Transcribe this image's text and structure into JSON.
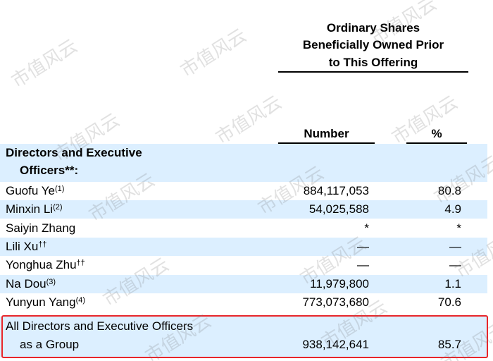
{
  "watermark": "市值风云",
  "header": {
    "title_lines": [
      "Ordinary Shares",
      "Beneficially Owned Prior",
      "to This Offering"
    ],
    "number_label": "Number",
    "percent_label": "%"
  },
  "section": {
    "lines": [
      "Directors and Executive",
      "Officers**:"
    ]
  },
  "people": [
    {
      "name": "Guofu Ye",
      "note": "(1)",
      "number": "884,117,053",
      "percent": "80.8"
    },
    {
      "name": "Minxin Li",
      "note": "(2)",
      "number": "54,025,588",
      "percent": "4.9"
    },
    {
      "name": "Saiyin Zhang",
      "number": "*",
      "percent": "*"
    },
    {
      "name": "Lili Xu",
      "note": "††",
      "number": "—",
      "percent": "—"
    },
    {
      "name": "Yonghua Zhu",
      "note": "††",
      "number": "—",
      "percent": "—"
    },
    {
      "name": "Na Dou",
      "note": "(3)",
      "number": "11,979,800",
      "percent": "1.1"
    },
    {
      "name": "Yunyun Yang",
      "note": "(4)",
      "number": "773,073,680",
      "percent": "70.6"
    }
  ],
  "total": {
    "lines": [
      "All Directors and Executive Officers",
      "as a Group"
    ],
    "number": "938,142,641",
    "percent": "85.7"
  }
}
